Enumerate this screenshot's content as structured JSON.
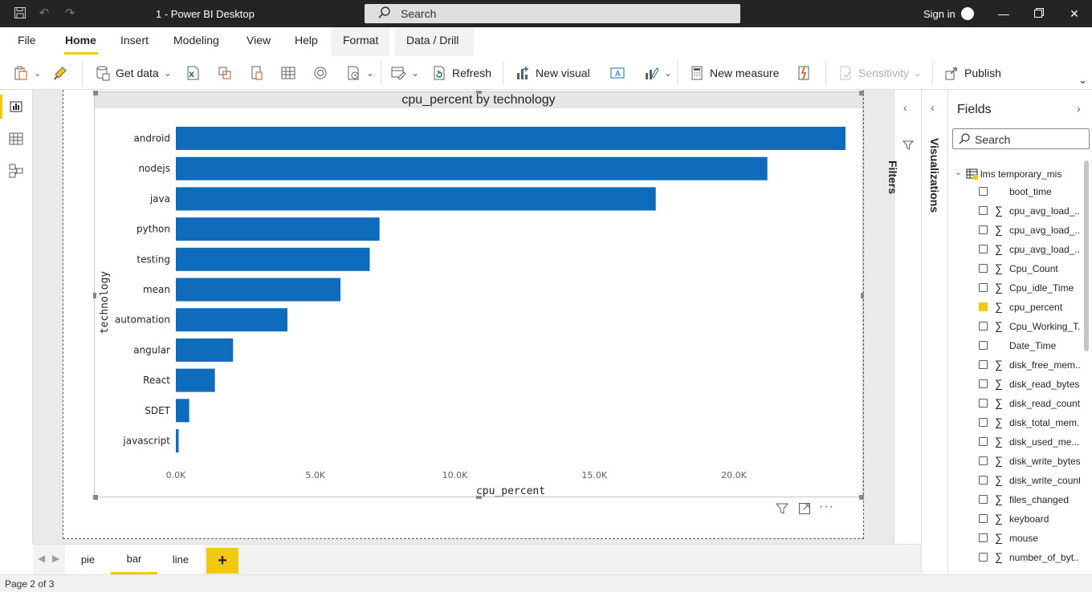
{
  "window": {
    "title": "1 - Power BI Desktop",
    "search_placeholder": "Search",
    "sign_in": "Sign in"
  },
  "ribbon_tabs": [
    "File",
    "Home",
    "Insert",
    "Modeling",
    "View",
    "Help"
  ],
  "active_tab": "Home",
  "contextual_tabs": [
    "Format",
    "Data / Drill"
  ],
  "toolbar": {
    "get_data": "Get data",
    "refresh": "Refresh",
    "new_visual": "New visual",
    "new_measure": "New measure",
    "sensitivity": "Sensitivity",
    "publish": "Publish"
  },
  "chart_data": {
    "type": "bar",
    "orientation": "horizontal",
    "title": "cpu_percent by technology",
    "xlabel": "cpu_percent",
    "ylabel": "technology",
    "categories": [
      "android",
      "nodejs",
      "java",
      "python",
      "testing",
      "mean",
      "automation",
      "angular",
      "React",
      "SDET",
      "javascript"
    ],
    "values": [
      24000,
      21200,
      17200,
      7300,
      6950,
      5900,
      4000,
      2050,
      1400,
      480,
      100
    ],
    "xlim": [
      0,
      24000
    ],
    "x_ticks": [
      0,
      5000,
      10000,
      15000,
      20000
    ],
    "x_tick_labels": [
      "0.0K",
      "5.0K",
      "10.0K",
      "15.0K",
      "20.0K"
    ],
    "color": "#0f6cbd",
    "grid": false
  },
  "page_tabs": [
    "pie",
    "bar",
    "line"
  ],
  "active_page": "bar",
  "status": "Page 2 of 3",
  "filters_label": "Filters",
  "visualizations_label": "Visualizations",
  "fields": {
    "title": "Fields",
    "search_placeholder": "Search",
    "table_name": "lms temporary_mis",
    "items": [
      {
        "name": "boot_time",
        "sigma": false,
        "checked": false
      },
      {
        "name": "cpu_avg_load_...",
        "sigma": true,
        "checked": false
      },
      {
        "name": "cpu_avg_load_...",
        "sigma": true,
        "checked": false
      },
      {
        "name": "cpu_avg_load_...",
        "sigma": true,
        "checked": false
      },
      {
        "name": "Cpu_Count",
        "sigma": true,
        "checked": false
      },
      {
        "name": "Cpu_idle_Time",
        "sigma": true,
        "checked": false
      },
      {
        "name": "cpu_percent",
        "sigma": true,
        "checked": true
      },
      {
        "name": "Cpu_Working_T...",
        "sigma": true,
        "checked": false
      },
      {
        "name": "Date_Time",
        "sigma": false,
        "checked": false
      },
      {
        "name": "disk_free_mem...",
        "sigma": true,
        "checked": false
      },
      {
        "name": "disk_read_bytes",
        "sigma": true,
        "checked": false
      },
      {
        "name": "disk_read_count",
        "sigma": true,
        "checked": false
      },
      {
        "name": "disk_total_mem...",
        "sigma": true,
        "checked": false
      },
      {
        "name": "disk_used_me...",
        "sigma": true,
        "checked": false
      },
      {
        "name": "disk_write_bytes",
        "sigma": true,
        "checked": false
      },
      {
        "name": "disk_write_count",
        "sigma": true,
        "checked": false
      },
      {
        "name": "files_changed",
        "sigma": true,
        "checked": false
      },
      {
        "name": "keyboard",
        "sigma": true,
        "checked": false
      },
      {
        "name": "mouse",
        "sigma": true,
        "checked": false
      },
      {
        "name": "number_of_byt...",
        "sigma": true,
        "checked": false
      }
    ]
  }
}
